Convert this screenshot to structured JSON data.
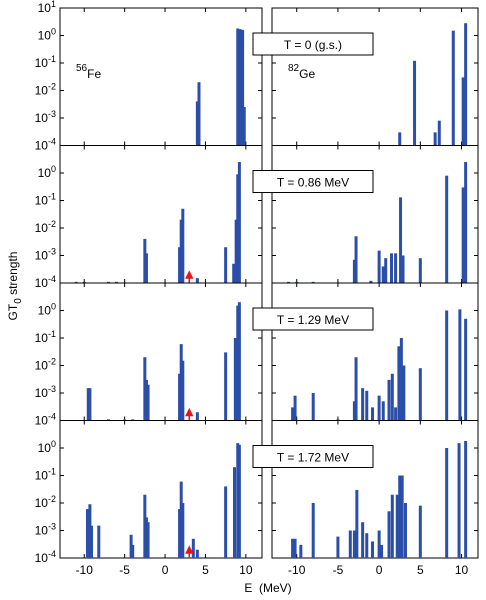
{
  "chart_data": {
    "type": "bar",
    "log_y": true,
    "color": "#2b4ea8",
    "ylabel": {
      "main": "GT",
      "sub": "0",
      "rest": " strength"
    },
    "xlabel": "E  (MeV)",
    "xlim": [
      -13,
      12
    ],
    "xticks": [
      -10,
      -5,
      0,
      5,
      10
    ],
    "ylim": [
      0.0001,
      10
    ],
    "yticks": [
      {
        "value": 0.0001,
        "label": {
          "base": "10",
          "exp": "-4"
        }
      },
      {
        "value": 0.001,
        "label": {
          "base": "10",
          "exp": "-3"
        }
      },
      {
        "value": 0.01,
        "label": {
          "base": "10",
          "exp": "-2"
        }
      },
      {
        "value": 0.1,
        "label": {
          "base": "10",
          "exp": "-1"
        }
      },
      {
        "value": 1,
        "label": {
          "base": "10",
          "exp": "0"
        }
      },
      {
        "value": 10,
        "label": {
          "base": "10",
          "exp": "1"
        }
      }
    ],
    "nuclei": [
      {
        "mass": "56",
        "symbol": "Fe"
      },
      {
        "mass": "82",
        "symbol": "Ge"
      }
    ],
    "arrow": {
      "x": 3,
      "color": "#e8141c"
    },
    "rows": [
      {
        "temperature": "T = 0 (g.s.)",
        "arrow": false,
        "panels": [
          {
            "x": [
              4.0,
              4.2,
              9.0,
              9.3,
              9.6,
              9.8
            ],
            "values": [
              0.004,
              0.02,
              1.8,
              1.7,
              1.6,
              0.0025
            ]
          },
          {
            "x": [
              2.5,
              4.3,
              6.8,
              7.3,
              9.0,
              10.2,
              10.5
            ],
            "values": [
              0.0003,
              0.12,
              0.0003,
              0.0008,
              1.5,
              0.03,
              2.8
            ]
          }
        ]
      },
      {
        "temperature": "T = 0.86 MeV",
        "arrow": true,
        "panels": [
          {
            "x": [
              -11,
              -10,
              -7,
              -6,
              -2.5,
              -2.3,
              1.8,
              2.0,
              2.2,
              4.0,
              7.5,
              8.5,
              8.8,
              9.0,
              9.2
            ],
            "values": [
              0.00011,
              0.00011,
              0.00011,
              0.00011,
              0.004,
              0.0012,
              0.002,
              0.02,
              0.05,
              0.00015,
              0.002,
              0.0005,
              0.02,
              0.9,
              2.5
            ]
          },
          {
            "x": [
              -11,
              -10,
              -8,
              -3,
              -2.8,
              -1,
              0,
              0.5,
              0.8,
              1.5,
              2.0,
              2.6,
              2.9,
              5.0,
              8.2,
              10.2,
              10.5
            ],
            "values": [
              0.00011,
              0.00011,
              0.00011,
              0.0007,
              0.005,
              0.00012,
              0.0015,
              0.0004,
              0.0008,
              0.0012,
              0.0012,
              0.13,
              0.001,
              0.0008,
              0.8,
              0.3,
              2.5
            ]
          }
        ]
      },
      {
        "temperature": "T = 1.29 MeV",
        "arrow": true,
        "panels": [
          {
            "x": [
              -9.5,
              -9.3,
              -7,
              -5,
              -4,
              -2.5,
              -2.3,
              -2.1,
              1.8,
              2.0,
              2.2,
              4.0,
              7.5,
              8.7,
              9.0,
              9.2
            ],
            "values": [
              0.0015,
              0.0015,
              0.00011,
              0.00011,
              0.00011,
              0.02,
              0.003,
              0.002,
              0.005,
              0.06,
              0.015,
              0.0002,
              0.03,
              0.1,
              1.5,
              2.0
            ]
          },
          {
            "x": [
              -10.5,
              -10.2,
              -8,
              -5,
              -3,
              -2.8,
              -2,
              -1.5,
              -0.8,
              0,
              0.5,
              1.2,
              1.6,
              2.0,
              2.4,
              2.7,
              3.0,
              5.0,
              8.2,
              9.8,
              10.5
            ],
            "values": [
              0.0003,
              0.0008,
              0.001,
              0.00011,
              0.0005,
              0.02,
              0.0015,
              0.0012,
              0.0003,
              0.0008,
              0.0005,
              0.003,
              0.005,
              0.0003,
              0.05,
              0.1,
              0.01,
              0.008,
              1.0,
              1.1,
              0.5
            ]
          }
        ]
      },
      {
        "temperature": "T = 1.72 MeV",
        "arrow": true,
        "panels": [
          {
            "x": [
              -9.6,
              -9.3,
              -9.1,
              -8.2,
              -4.2,
              -4.0,
              -2.5,
              -2.3,
              -2.1,
              1.8,
              2.0,
              2.2,
              3.5,
              4.0,
              7.5,
              8.6,
              9.0,
              9.2
            ],
            "values": [
              0.006,
              0.009,
              0.0015,
              0.0015,
              0.0007,
              0.0003,
              0.02,
              0.003,
              0.002,
              0.006,
              0.06,
              0.01,
              0.0005,
              0.0002,
              0.04,
              0.2,
              1.5,
              1.3
            ]
          },
          {
            "x": [
              -10.5,
              -10.2,
              -9.5,
              -8,
              -5,
              -3.5,
              -3,
              -2.7,
              -2,
              -1.5,
              -0.8,
              0,
              0.3,
              1.2,
              1.6,
              2.2,
              2.5,
              2.8,
              3.2,
              5.0,
              8.2,
              9.7,
              10.5
            ],
            "values": [
              0.0005,
              0.0005,
              0.0003,
              0.01,
              0.0006,
              0.001,
              0.001,
              0.03,
              0.002,
              0.0008,
              0.0004,
              0.001,
              0.0003,
              0.005,
              0.02,
              0.02,
              0.1,
              0.1,
              0.01,
              0.008,
              1.0,
              1.5,
              1.8
            ]
          }
        ]
      }
    ]
  }
}
